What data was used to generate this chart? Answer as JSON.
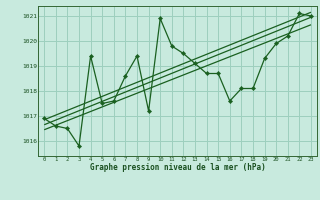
{
  "xlabel": "Graphe pression niveau de la mer (hPa)",
  "bg_color": "#c8eade",
  "grid_color": "#9dcfbe",
  "line_color": "#1a6020",
  "x": [
    0,
    1,
    2,
    3,
    4,
    5,
    6,
    7,
    8,
    9,
    10,
    11,
    12,
    13,
    14,
    15,
    16,
    17,
    18,
    19,
    20,
    21,
    22,
    23
  ],
  "y_main": [
    1016.9,
    1016.6,
    1016.5,
    1015.8,
    1019.4,
    1017.5,
    1017.6,
    1018.6,
    1019.4,
    1017.2,
    1020.9,
    1019.8,
    1019.5,
    1019.1,
    1018.7,
    1018.7,
    1017.6,
    1018.1,
    1018.1,
    1019.3,
    1019.9,
    1020.2,
    1021.1,
    1021.0
  ],
  "ylim": [
    1015.4,
    1021.4
  ],
  "yticks": [
    1016,
    1017,
    1018,
    1019,
    1020,
    1021
  ],
  "trend_lines": [
    [
      1016.65,
      1020.95
    ],
    [
      1016.45,
      1020.65
    ],
    [
      1016.85,
      1021.15
    ]
  ]
}
